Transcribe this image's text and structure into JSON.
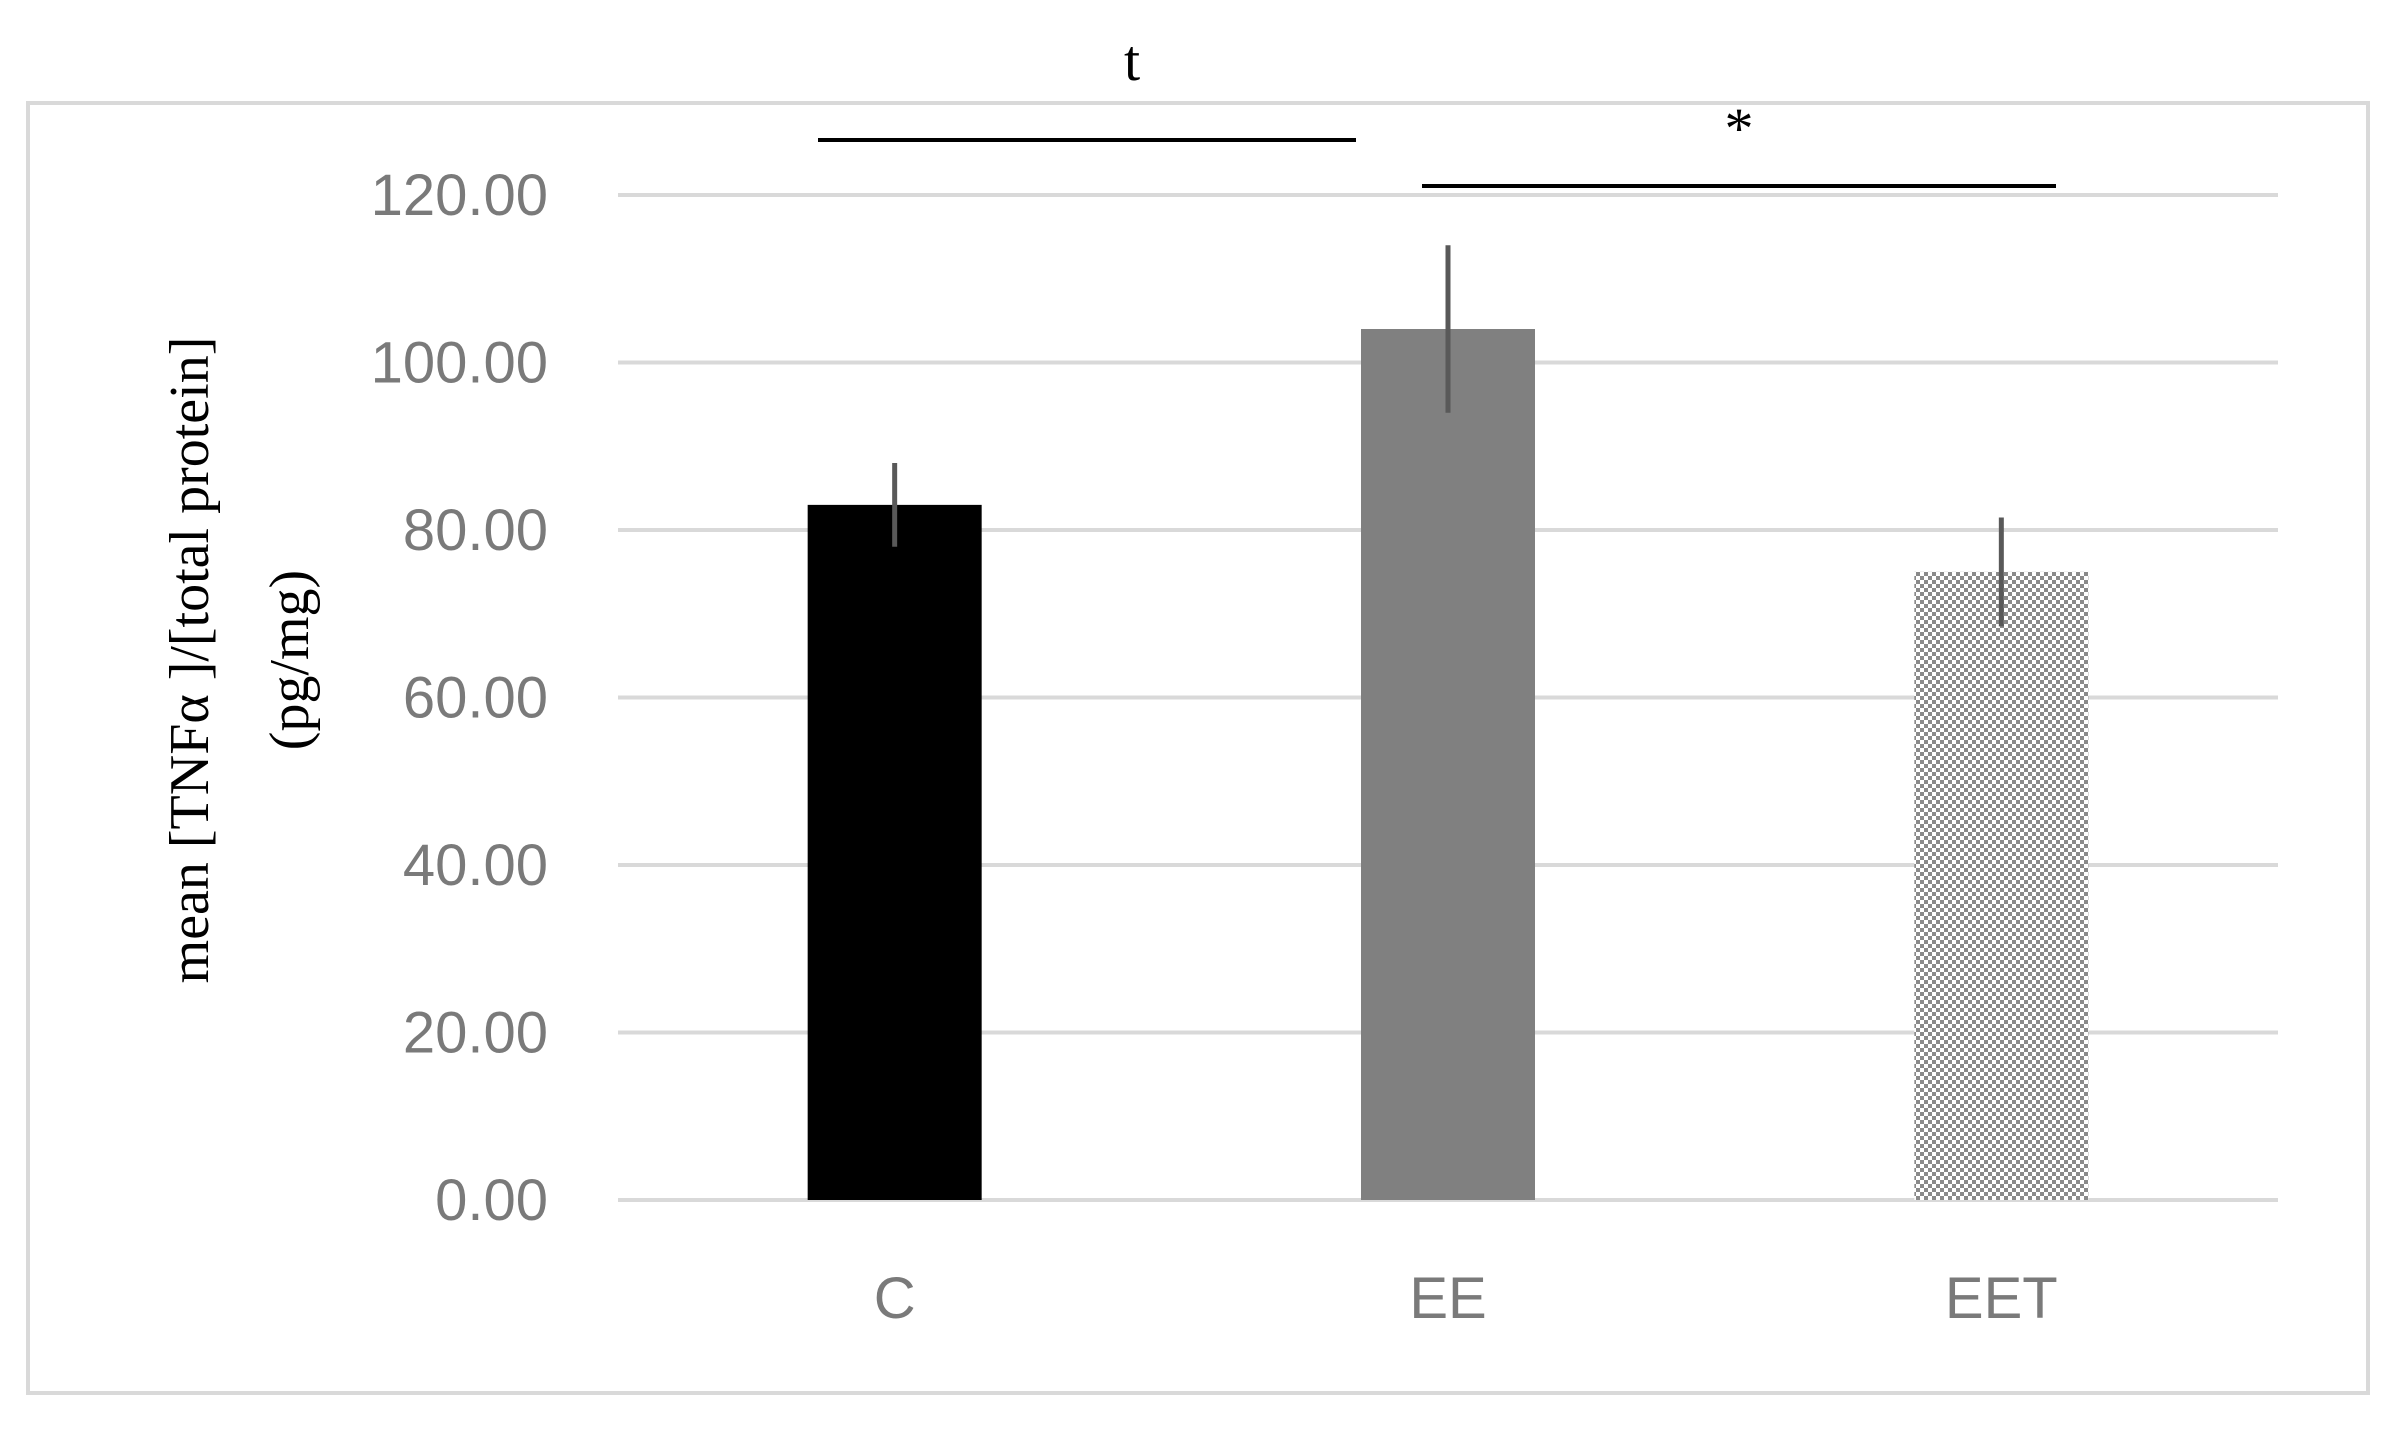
{
  "chart_data": {
    "type": "bar",
    "categories": [
      "C",
      "EE",
      "EET"
    ],
    "values": [
      83.0,
      104.0,
      75.0
    ],
    "error": [
      5.0,
      10.0,
      6.5
    ],
    "ylabel_line1": "mean [TNFα ]/[total protein]",
    "ylabel_line2": "(pg/mg)",
    "ylim": [
      0,
      120
    ],
    "yticks": [
      0,
      20,
      40,
      60,
      80,
      100,
      120
    ],
    "ytick_labels": [
      "0.00",
      "20.00",
      "40.00",
      "60.00",
      "80.00",
      "100.00",
      "120.00"
    ],
    "grid": true,
    "bar_styles": [
      "solid-black",
      "solid-gray",
      "dotted-gray"
    ],
    "colors": {
      "C": "#000000",
      "EE": "#808080",
      "EET": "#9a9a9a",
      "grid": "#d9d9d9",
      "tick_text": "#7a7a7a",
      "error_bar": "#595959",
      "frame": "#d9d9d9"
    },
    "significance": [
      {
        "from": "C",
        "to": "EE",
        "label": "t"
      },
      {
        "from": "EE",
        "to": "EET",
        "label": "*"
      }
    ]
  }
}
